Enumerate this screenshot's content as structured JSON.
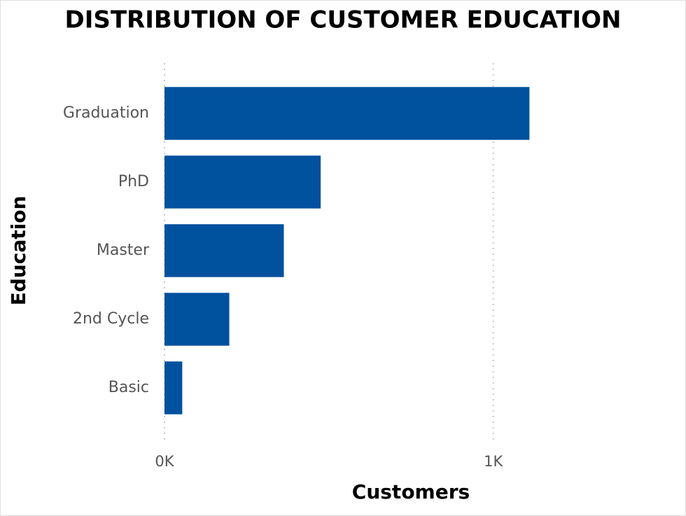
{
  "chart_data": {
    "type": "bar",
    "orientation": "horizontal",
    "title": "DISTRIBUTION OF CUSTOMER EDUCATION",
    "x_label": "Customers",
    "y_label": "Education",
    "categories": [
      "Graduation",
      "PhD",
      "Master",
      "2nd Cycle",
      "Basic"
    ],
    "values": [
      1110,
      475,
      363,
      197,
      54
    ],
    "color": "#00519e",
    "xlim": [
      0,
      1550
    ],
    "xticks": [
      {
        "value": 0,
        "label": "0K"
      },
      {
        "value": 1000,
        "label": "1K"
      }
    ],
    "grid": true
  }
}
